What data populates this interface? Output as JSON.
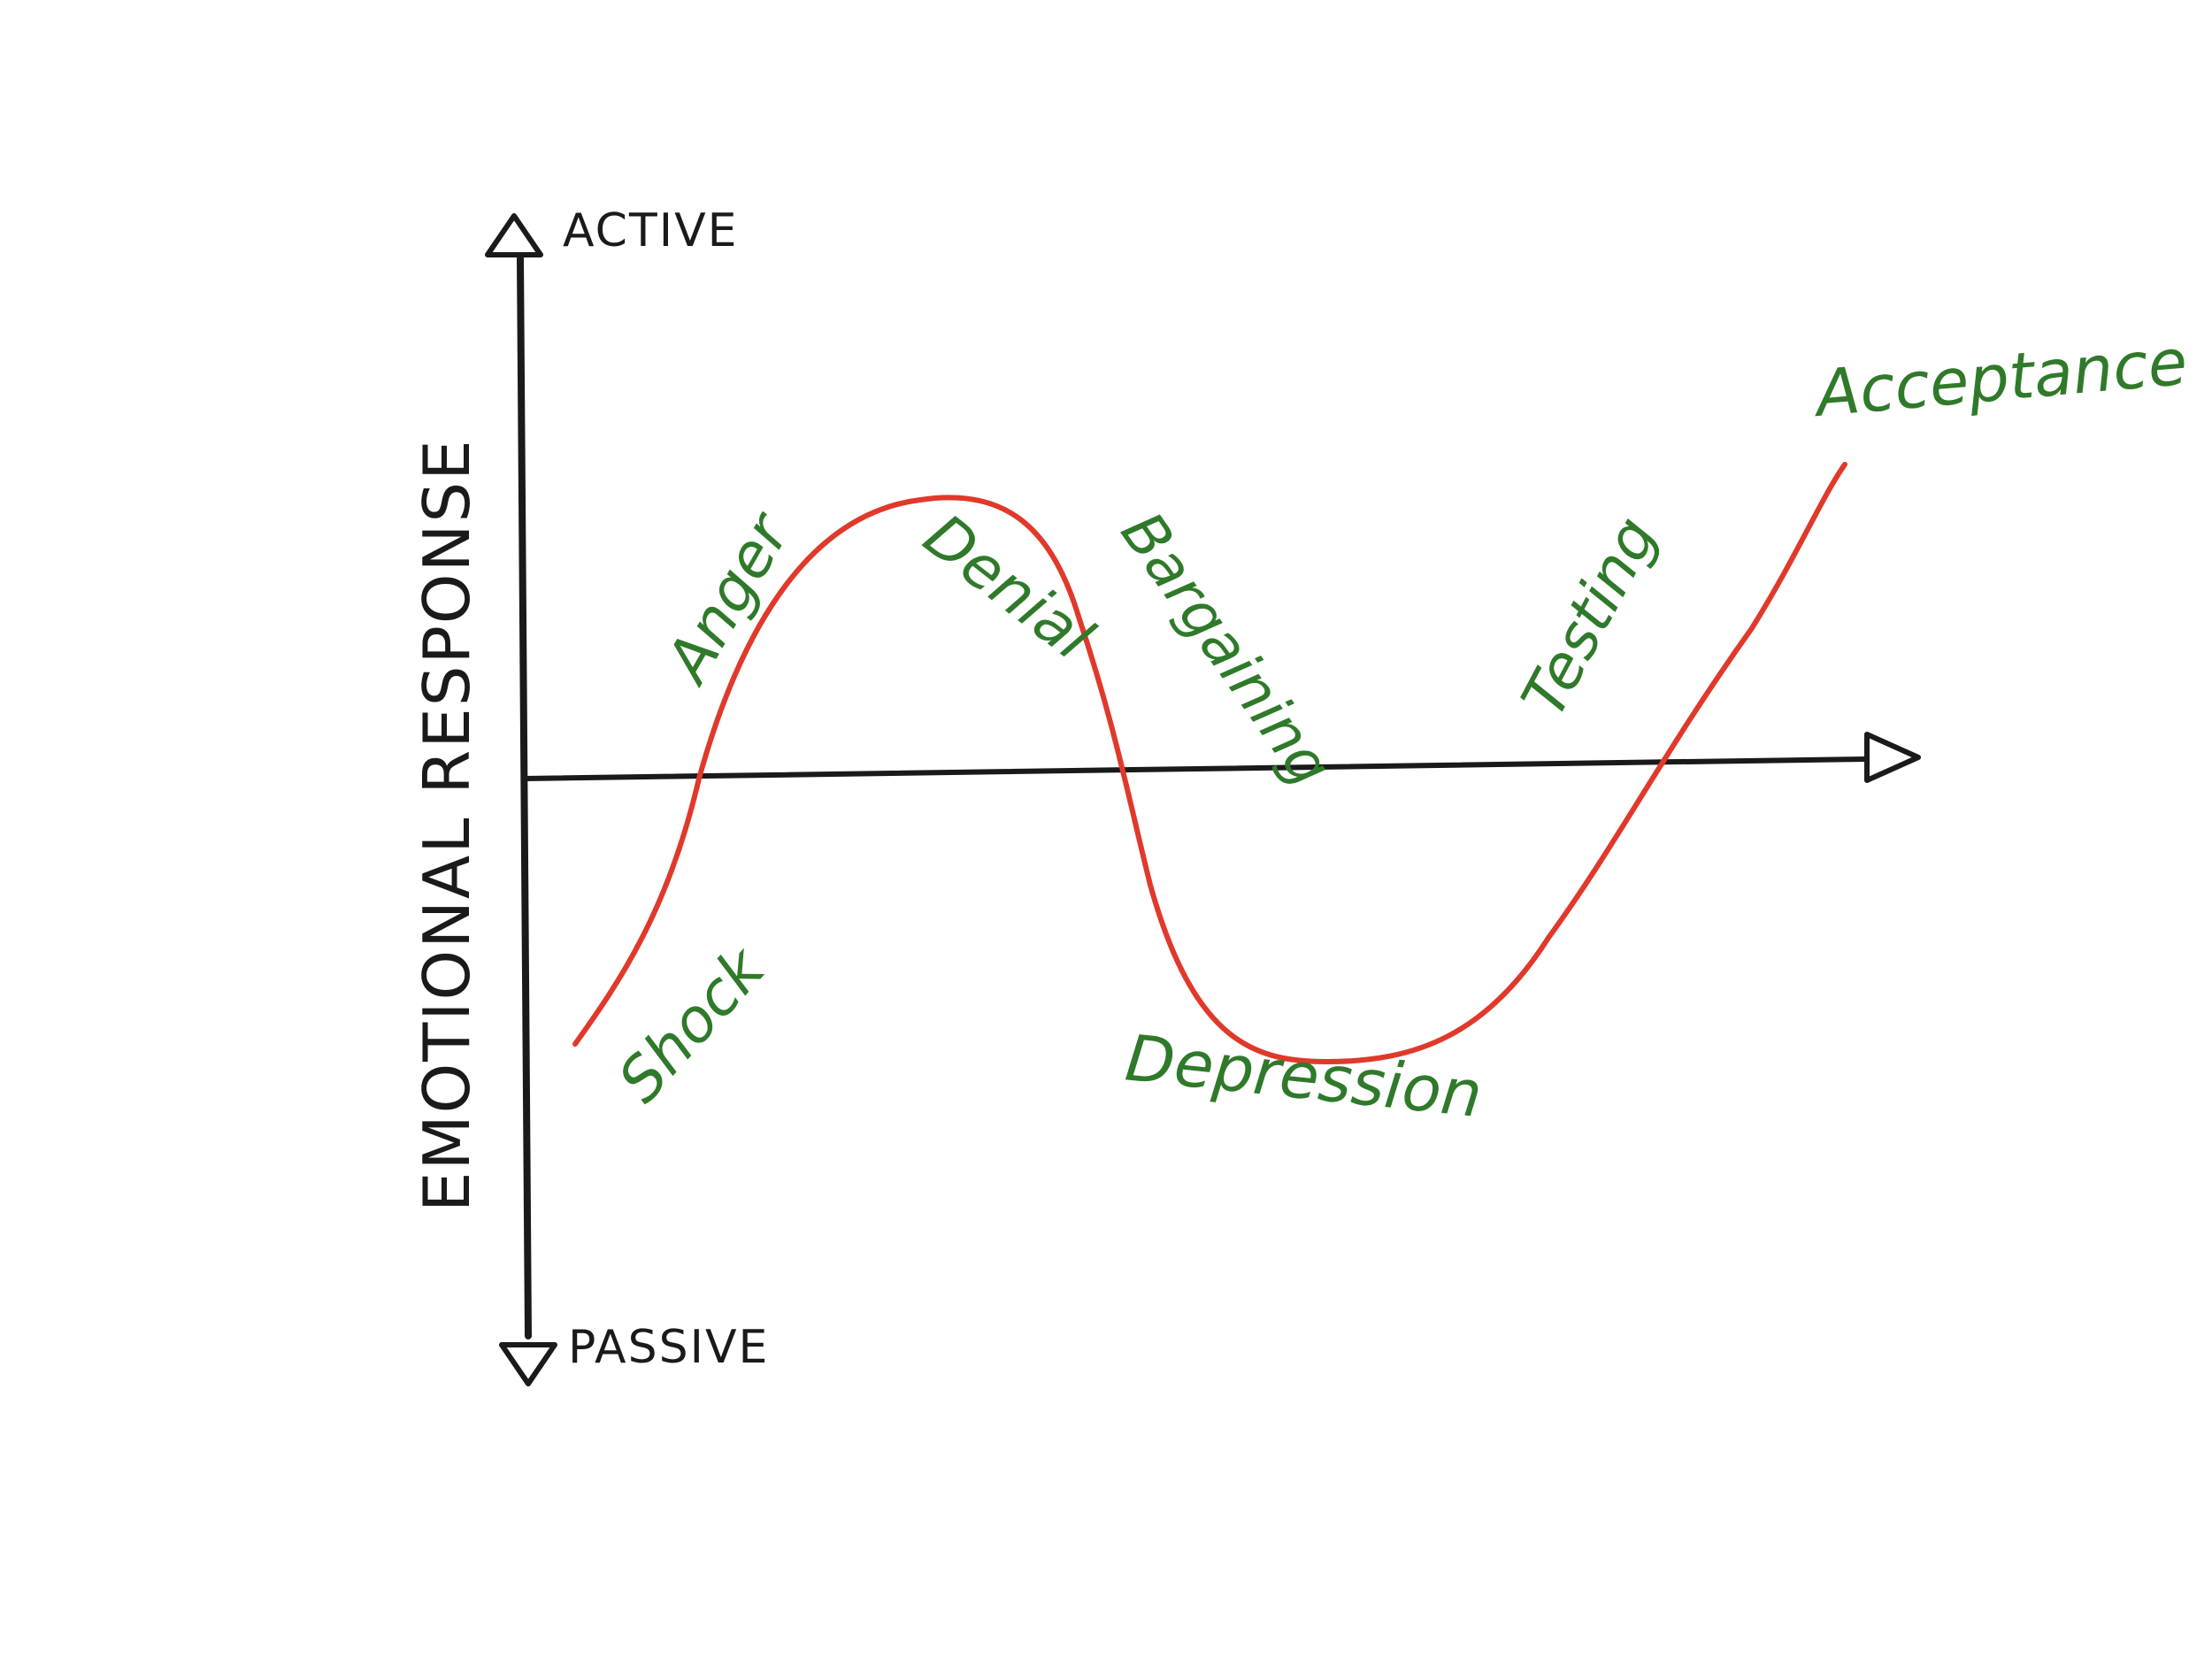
{
  "diagram": {
    "axis_labels": {
      "top": "ACTIVE",
      "bottom": "PASSIVE",
      "vertical": "EMOTIONAL RESPONSE"
    },
    "stages": [
      {
        "id": "shock",
        "label": "Shock"
      },
      {
        "id": "anger",
        "label": "Anger"
      },
      {
        "id": "denial",
        "label": "Denial"
      },
      {
        "id": "bargaining",
        "label": "Bargaining"
      },
      {
        "id": "depression",
        "label": "Depression"
      },
      {
        "id": "testing",
        "label": "Testing"
      },
      {
        "id": "acceptance",
        "label": "Acceptance"
      }
    ],
    "colors": {
      "curve": "#e0392b",
      "stage_text": "#2f7a2a",
      "axis": "#1a1a1a"
    }
  }
}
